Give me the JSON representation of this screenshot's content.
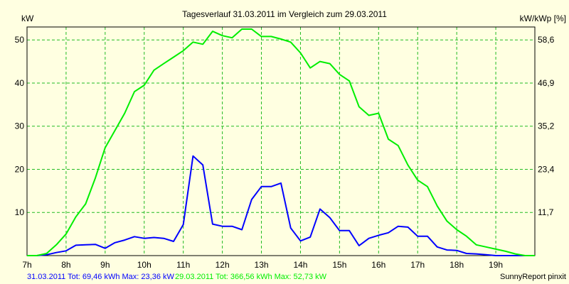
{
  "colors": {
    "background": "#ffffe1",
    "plot_border": "#000000",
    "grid": "#22bb22",
    "series_1": "#0000ff",
    "series_2": "#00ee00"
  },
  "chart_data": {
    "type": "line",
    "title": "Tagesverlauf 31.03.2011 im Vergleich zum 29.03.2011",
    "y_left_label": "kW",
    "y_right_label": "kW/kWp [%]",
    "x_ticks": [
      "7h",
      "8h",
      "9h",
      "10h",
      "11h",
      "12h",
      "13h",
      "14h",
      "15h",
      "16h",
      "17h",
      "18h",
      "19h"
    ],
    "y_left_ticks": [
      10,
      20,
      30,
      40,
      50
    ],
    "y_right_ticks": [
      "11,7",
      "23,4",
      "35,2",
      "46,9",
      "58,6"
    ],
    "xlim": [
      7.0,
      20.0
    ],
    "ylim": [
      0,
      53
    ],
    "grid": true,
    "series": [
      {
        "name": "31.03.2011",
        "color": "#0000ff",
        "x": [
          7.0,
          7.25,
          7.5,
          7.75,
          8.0,
          8.25,
          8.5,
          8.75,
          9.0,
          9.25,
          9.5,
          9.75,
          10.0,
          10.25,
          10.5,
          10.75,
          11.0,
          11.25,
          11.5,
          11.75,
          12.0,
          12.25,
          12.5,
          12.75,
          13.0,
          13.25,
          13.5,
          13.75,
          14.0,
          14.25,
          14.5,
          14.75,
          15.0,
          15.25,
          15.5,
          15.75,
          16.0,
          16.25,
          16.5,
          16.75,
          17.0,
          17.25,
          17.5,
          17.75,
          18.0,
          18.25,
          18.5,
          18.75,
          19.0,
          19.25,
          19.5,
          19.75,
          20.0
        ],
        "y": [
          0,
          0,
          0.2,
          0.7,
          1.1,
          2.4,
          2.5,
          2.6,
          1.7,
          3.0,
          3.6,
          4.4,
          4.0,
          4.2,
          4.0,
          3.3,
          7.2,
          23.1,
          21.0,
          7.3,
          6.8,
          6.8,
          6.0,
          13.0,
          16.0,
          16.0,
          16.8,
          6.4,
          3.4,
          4.3,
          10.8,
          8.8,
          5.8,
          5.8,
          2.3,
          4.0,
          4.7,
          5.3,
          6.8,
          6.6,
          4.5,
          4.5,
          2.0,
          1.3,
          1.2,
          0.5,
          0.4,
          0.2,
          0,
          0,
          0,
          0,
          0
        ]
      },
      {
        "name": "29.03.2011",
        "color": "#00ee00",
        "x": [
          7.0,
          7.25,
          7.5,
          7.75,
          8.0,
          8.25,
          8.5,
          8.75,
          9.0,
          9.25,
          9.5,
          9.75,
          10.0,
          10.25,
          10.5,
          10.75,
          11.0,
          11.25,
          11.5,
          11.75,
          12.0,
          12.25,
          12.5,
          12.75,
          13.0,
          13.25,
          13.5,
          13.75,
          14.0,
          14.25,
          14.5,
          14.75,
          15.0,
          15.25,
          15.5,
          15.75,
          16.0,
          16.25,
          16.5,
          16.75,
          17.0,
          17.25,
          17.5,
          17.75,
          18.0,
          18.25,
          18.5,
          18.75,
          19.0,
          19.25,
          19.5,
          19.75,
          20.0
        ],
        "y": [
          0,
          0,
          0.5,
          2.5,
          5.0,
          9.0,
          12.0,
          18.0,
          25.0,
          29.0,
          33.0,
          38.0,
          39.5,
          43.0,
          44.5,
          46.0,
          47.5,
          49.5,
          49.0,
          52.0,
          51.0,
          50.5,
          52.5,
          52.5,
          50.8,
          50.8,
          50.2,
          49.5,
          47.0,
          43.5,
          45.0,
          44.5,
          42.0,
          40.5,
          34.5,
          32.5,
          33.0,
          27.0,
          25.5,
          21.0,
          17.5,
          16.0,
          11.5,
          8.0,
          6.0,
          4.5,
          2.5,
          2.0,
          1.5,
          1.0,
          0.4,
          0,
          0
        ]
      }
    ],
    "footer": {
      "series_1_summary": "31.03.2011 Tot: 69,46 kWh Max: 23,36 kW",
      "series_2_summary": "29.03.2011 Tot: 366,56 kWh Max: 52,73 kW",
      "credit": "SunnyReport pinxit"
    }
  }
}
